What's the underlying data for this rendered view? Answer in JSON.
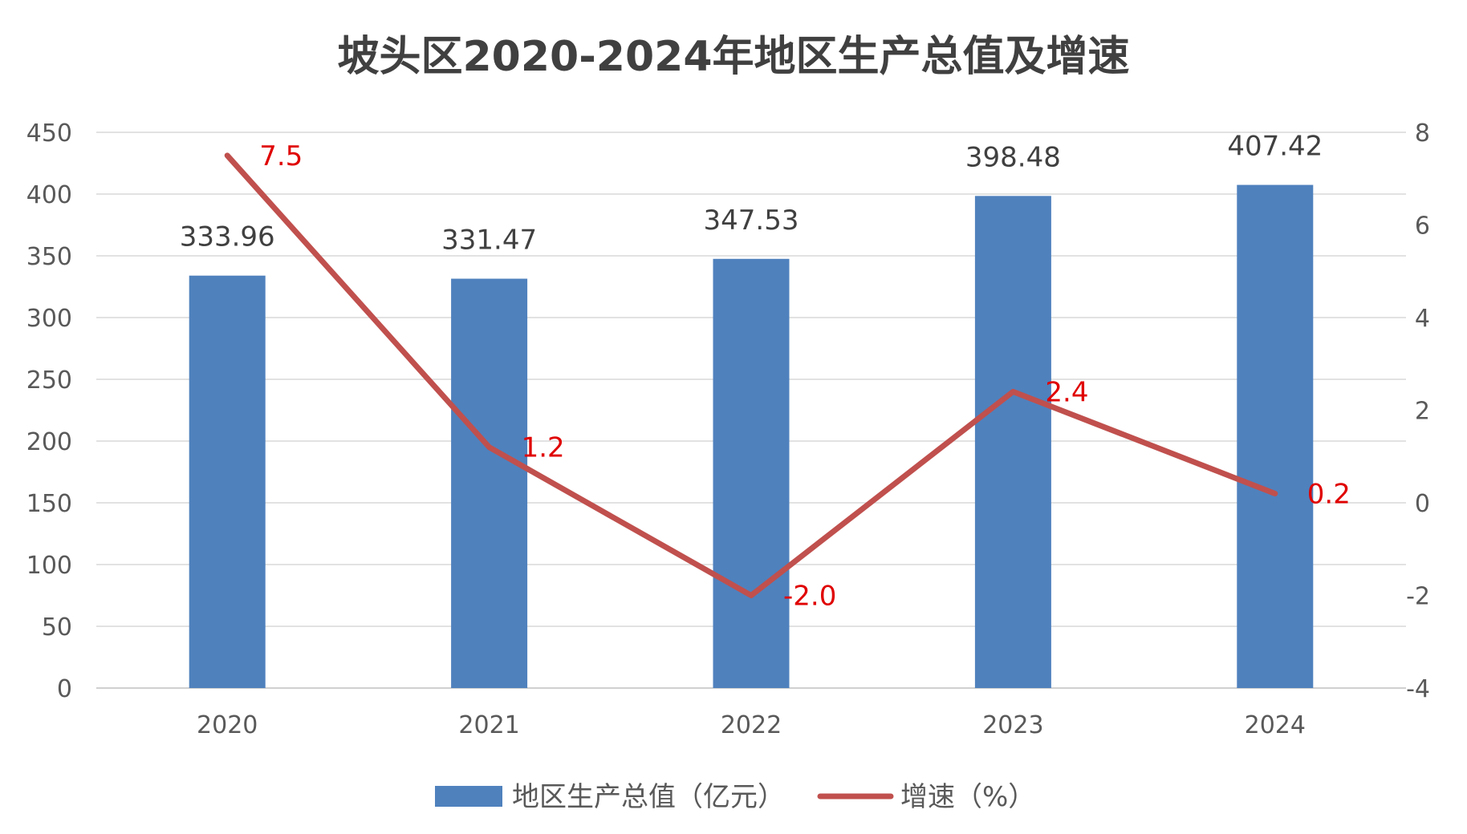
{
  "chart_data": {
    "type": "bar",
    "title": "坡头区2020-2024年地区生产总值及增速",
    "categories": [
      "2020",
      "2021",
      "2022",
      "2023",
      "2024"
    ],
    "series": [
      {
        "name": "地区生产总值（亿元）",
        "type": "bar",
        "axis": "left",
        "color": "#4f81bd",
        "values": [
          333.96,
          331.47,
          347.53,
          398.48,
          407.42
        ],
        "labels": [
          "333.96",
          "331.47",
          "347.53",
          "398.48",
          "407.42"
        ]
      },
      {
        "name": "增速（%）",
        "type": "line",
        "axis": "right",
        "color": "#c0504d",
        "label_color": "#e00000",
        "values": [
          7.5,
          1.2,
          -2.0,
          2.4,
          0.2
        ],
        "labels": [
          "7.5",
          "1.2",
          "-2.0",
          "2.4",
          "0.2"
        ]
      }
    ],
    "y_left": {
      "ylim": [
        0,
        450
      ],
      "ticks": [
        "0",
        "50",
        "100",
        "150",
        "200",
        "250",
        "300",
        "350",
        "400",
        "450"
      ]
    },
    "y_right": {
      "ylim": [
        -4,
        8
      ],
      "ticks": [
        "-4",
        "-2",
        "0",
        "2",
        "4",
        "6",
        "8"
      ]
    },
    "xlabel": "",
    "ylabel": "",
    "grid": true,
    "legend_position": "bottom"
  }
}
